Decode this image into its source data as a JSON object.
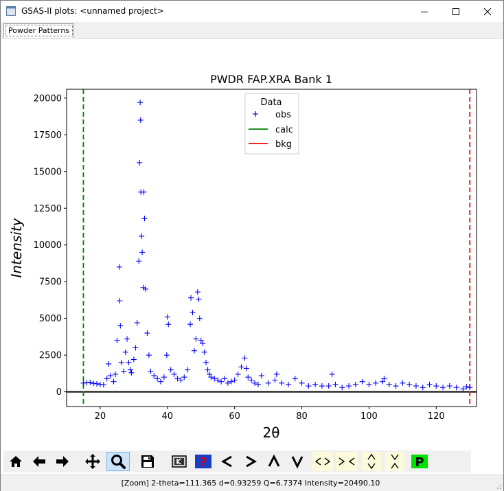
{
  "window": {
    "title": "GSAS-II plots: <unnamed project>",
    "icon": "app-icon",
    "controls": [
      "minimize-icon",
      "maximize-icon",
      "close-icon"
    ]
  },
  "tabs": [
    {
      "label": "Powder Patterns",
      "active": true
    }
  ],
  "toolbar": {
    "buttons": [
      "home-icon",
      "back-arrow-icon",
      "forward-arrow-icon",
      "pan-icon",
      "zoom-icon",
      "save-icon",
      "keyboard-icon",
      "help-icon",
      "shift-left-icon",
      "shift-right-icon",
      "shift-up-icon",
      "shift-down-icon",
      "expand-x-icon",
      "contract-x-icon",
      "expand-y-icon",
      "contract-y-icon",
      "publish-icon"
    ],
    "active": "zoom-icon"
  },
  "status": {
    "text": "[Zoom] 2-theta=111.365 d=0.93259 Q=6.7374 Intensity=20490.10"
  },
  "chart_data": {
    "type": "scatter",
    "title": "PWDR FAP.XRA Bank 1",
    "xlabel": "2θ",
    "ylabel": "Intensity",
    "xlim": [
      10,
      132
    ],
    "ylim": [
      -1000,
      20600
    ],
    "xticks": [
      20,
      40,
      60,
      80,
      100,
      120
    ],
    "yticks": [
      0,
      2500,
      5000,
      7500,
      10000,
      12500,
      15000,
      17500,
      20000
    ],
    "legend": {
      "title": "Data",
      "placement": "top-center",
      "entries": [
        {
          "label": "obs",
          "color": "#0000ff",
          "marker": "plus"
        },
        {
          "label": "calc",
          "color": "#008000",
          "marker": "line"
        },
        {
          "label": "bkg",
          "color": "#ff0000",
          "marker": "line"
        }
      ]
    },
    "limits": {
      "low": 15,
      "high": 130
    },
    "limit_colors": {
      "low": "#008000",
      "high": "#ff0000"
    },
    "baseline": 0,
    "series": [
      {
        "name": "obs",
        "color": "#0000ff",
        "x": [
          15,
          16,
          17,
          18,
          19,
          20,
          21,
          22,
          22.5,
          23,
          24,
          24.5,
          25,
          25.7,
          25.8,
          26,
          26.3,
          27,
          27.5,
          28,
          28.5,
          29,
          29.3,
          30,
          30.5,
          31,
          31.5,
          31.7,
          31.9,
          32,
          32.1,
          32.3,
          32.5,
          32.8,
          33,
          33.2,
          33.5,
          34,
          34.5,
          35,
          36,
          37,
          38,
          39,
          39.8,
          40,
          40.3,
          41,
          42,
          43,
          44,
          45,
          46,
          46.8,
          47,
          47.5,
          48,
          48.5,
          49,
          49.3,
          49.6,
          50,
          50.5,
          51,
          51.5,
          52,
          52.5,
          53,
          54,
          55,
          56,
          57,
          58,
          59,
          60,
          61,
          62,
          63,
          63.5,
          64,
          65,
          66,
          67,
          68,
          70,
          72,
          72.5,
          74,
          76,
          78,
          80,
          82,
          84,
          86,
          88,
          89,
          90,
          92,
          94,
          96,
          98,
          100,
          102,
          104,
          104.5,
          106,
          108,
          110,
          112,
          114,
          116,
          118,
          120,
          122,
          124,
          126,
          128,
          129,
          130
        ],
        "y": [
          600,
          620,
          650,
          580,
          550,
          500,
          480,
          900,
          1900,
          1100,
          700,
          1200,
          3500,
          8500,
          6200,
          4500,
          2000,
          1400,
          2700,
          3600,
          2000,
          1500,
          1300,
          2200,
          3000,
          4700,
          8900,
          15600,
          19700,
          18500,
          13600,
          10600,
          9500,
          7100,
          13600,
          11800,
          7000,
          4000,
          2500,
          1400,
          1100,
          900,
          700,
          1000,
          2500,
          5100,
          4600,
          1500,
          1200,
          900,
          800,
          1000,
          1500,
          4600,
          6400,
          5400,
          2800,
          3600,
          6800,
          6300,
          5000,
          3500,
          3300,
          2700,
          2000,
          1500,
          1200,
          1000,
          900,
          800,
          700,
          900,
          600,
          700,
          800,
          1200,
          1700,
          2300,
          1600,
          1000,
          800,
          600,
          500,
          1100,
          600,
          800,
          1200,
          600,
          500,
          900,
          600,
          400,
          500,
          400,
          400,
          1200,
          500,
          300,
          400,
          500,
          700,
          500,
          600,
          700,
          900,
          500,
          400,
          600,
          500,
          400,
          300,
          500,
          400,
          300,
          400,
          300,
          200,
          350,
          300
        ]
      },
      {
        "name": "calc",
        "color": "#008000",
        "values": []
      },
      {
        "name": "bkg",
        "color": "#ff0000",
        "values": []
      }
    ]
  }
}
